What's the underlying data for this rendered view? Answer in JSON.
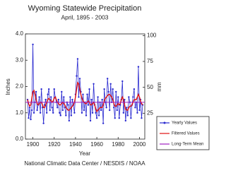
{
  "chart_data": {
    "type": "line",
    "title": "Wyoming Statewide Precipitation",
    "subtitle": "April, 1895 - 2003",
    "xlabel": "Year",
    "ylabel": "Inches",
    "y2label": "mm",
    "footer": "National Climatic Data Center / NESDIS / NOAA",
    "x": [
      1895,
      1896,
      1897,
      1898,
      1899,
      1900,
      1901,
      1902,
      1903,
      1904,
      1905,
      1906,
      1907,
      1908,
      1909,
      1910,
      1911,
      1912,
      1913,
      1914,
      1915,
      1916,
      1917,
      1918,
      1919,
      1920,
      1921,
      1922,
      1923,
      1924,
      1925,
      1926,
      1927,
      1928,
      1929,
      1930,
      1931,
      1932,
      1933,
      1934,
      1935,
      1936,
      1937,
      1938,
      1939,
      1940,
      1941,
      1942,
      1943,
      1944,
      1945,
      1946,
      1947,
      1948,
      1949,
      1950,
      1951,
      1952,
      1953,
      1954,
      1955,
      1956,
      1957,
      1958,
      1959,
      1960,
      1961,
      1962,
      1963,
      1964,
      1965,
      1966,
      1967,
      1968,
      1969,
      1970,
      1971,
      1972,
      1973,
      1974,
      1975,
      1976,
      1977,
      1978,
      1979,
      1980,
      1981,
      1982,
      1983,
      1984,
      1985,
      1986,
      1987,
      1988,
      1989,
      1990,
      1991,
      1992,
      1993,
      1994,
      1995,
      1996,
      1997,
      1998,
      1999,
      2000,
      2001,
      2002,
      2003
    ],
    "series": [
      {
        "name": "Yearly Values",
        "color": "#2a2ad0",
        "markers": true,
        "values": [
          1.5,
          0.8,
          1.2,
          0.75,
          1.1,
          3.6,
          1.0,
          1.4,
          1.8,
          1.1,
          1.3,
          1.6,
          1.0,
          1.9,
          1.2,
          0.6,
          1.3,
          1.5,
          1.0,
          1.7,
          1.9,
          1.1,
          1.6,
          1.2,
          1.0,
          1.9,
          1.6,
          1.4,
          1.2,
          1.5,
          1.0,
          0.9,
          1.8,
          1.1,
          1.6,
          1.2,
          0.9,
          1.4,
          1.3,
          0.7,
          1.6,
          0.9,
          1.5,
          1.3,
          1.0,
          1.7,
          2.4,
          3.05,
          1.6,
          2.3,
          1.8,
          1.0,
          1.7,
          1.1,
          1.4,
          0.9,
          1.7,
          1.3,
          1.9,
          0.7,
          1.5,
          1.0,
          2.1,
          1.3,
          1.0,
          0.8,
          1.6,
          0.9,
          1.4,
          1.1,
          1.5,
          0.6,
          1.9,
          1.4,
          1.2,
          2.3,
          1.8,
          1.1,
          2.1,
          1.4,
          1.9,
          1.2,
          0.8,
          1.8,
          1.1,
          1.6,
          0.8,
          1.3,
          1.5,
          2.2,
          1.0,
          1.5,
          0.7,
          1.2,
          0.9,
          1.6,
          1.4,
          0.8,
          1.3,
          1.6,
          1.9,
          1.2,
          1.4,
          1.0,
          2.75,
          1.1,
          1.5,
          0.8,
          1.3
        ]
      },
      {
        "name": "Filtered Values",
        "color": "#e01010",
        "markers": false,
        "values": [
          1.5,
          1.35,
          1.25,
          1.3,
          1.55,
          1.8,
          1.85,
          1.7,
          1.5,
          1.35,
          1.3,
          1.35,
          1.4,
          1.4,
          1.3,
          1.2,
          1.2,
          1.3,
          1.4,
          1.5,
          1.55,
          1.5,
          1.45,
          1.4,
          1.45,
          1.55,
          1.6,
          1.5,
          1.4,
          1.35,
          1.3,
          1.3,
          1.35,
          1.4,
          1.35,
          1.3,
          1.2,
          1.15,
          1.1,
          1.1,
          1.15,
          1.2,
          1.25,
          1.3,
          1.4,
          1.6,
          1.9,
          2.15,
          2.1,
          1.9,
          1.7,
          1.55,
          1.45,
          1.4,
          1.35,
          1.35,
          1.4,
          1.45,
          1.4,
          1.3,
          1.3,
          1.35,
          1.4,
          1.3,
          1.15,
          1.05,
          1.1,
          1.15,
          1.2,
          1.2,
          1.2,
          1.3,
          1.45,
          1.55,
          1.6,
          1.65,
          1.7,
          1.7,
          1.65,
          1.6,
          1.5,
          1.35,
          1.25,
          1.25,
          1.3,
          1.35,
          1.3,
          1.35,
          1.5,
          1.6,
          1.5,
          1.3,
          1.15,
          1.1,
          1.1,
          1.2,
          1.25,
          1.25,
          1.3,
          1.4,
          1.5,
          1.5,
          1.5,
          1.6,
          1.7,
          1.6,
          1.45,
          1.35,
          1.3
        ]
      },
      {
        "name": "Long-Term Mean",
        "color": "#a020c0",
        "value": 1.4
      }
    ],
    "xlim": [
      1893,
      2005
    ],
    "xticks": [
      1900,
      1920,
      1940,
      1960,
      1980,
      2000
    ],
    "ylim": [
      0,
      4
    ],
    "yticks": [
      {
        "value": 0,
        "label": "0.0"
      },
      {
        "value": 1,
        "label": "1.0"
      },
      {
        "value": 2,
        "label": "2.0"
      },
      {
        "value": 3,
        "label": "3.0"
      },
      {
        "value": 4,
        "label": "4.0"
      }
    ],
    "y2lim": [
      0,
      101.6
    ],
    "y2ticks": [
      25,
      50,
      75,
      100
    ],
    "legend": "right"
  }
}
